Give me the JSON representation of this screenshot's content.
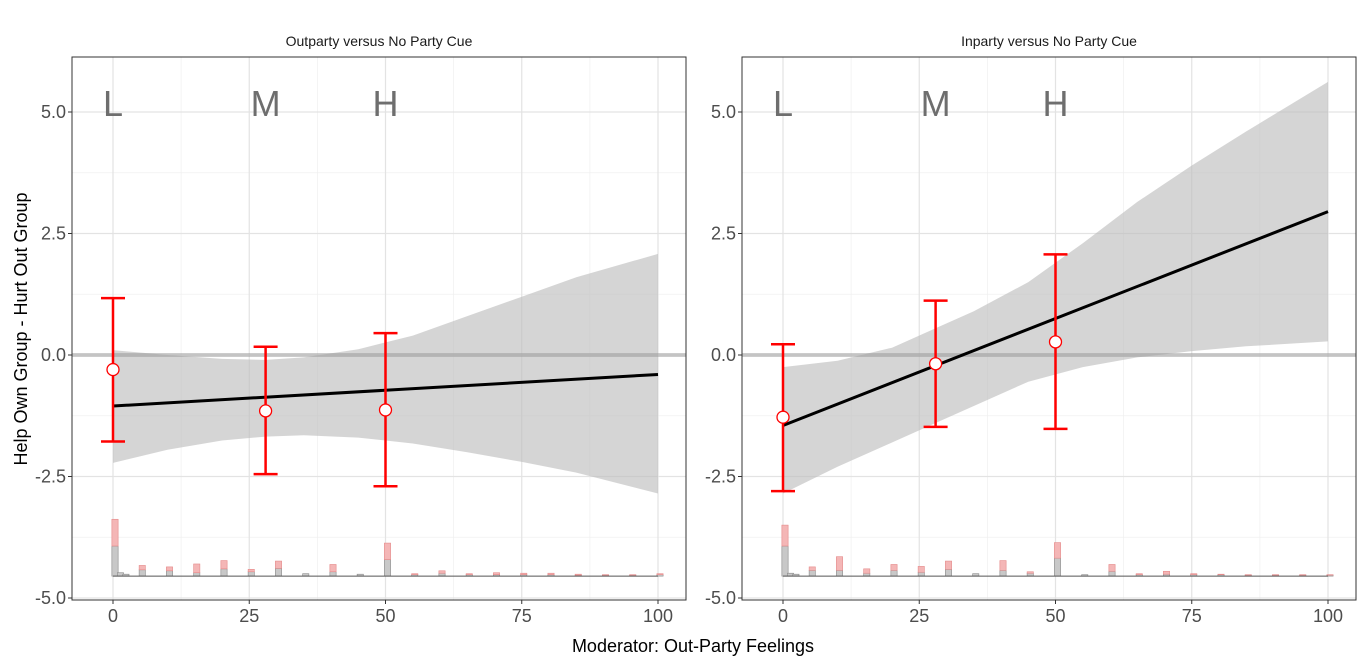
{
  "figure": {
    "ylabel": "Help Own Group - Hurt Out Group",
    "xlabel": "Moderator: Out-Party Feelings"
  },
  "chart_data": [
    {
      "type": "line",
      "title": "Outparty versus No Party Cue",
      "xlabel": "Moderator: Out-Party Feelings",
      "ylabel": "Help Own Group - Hurt Out Group",
      "xlim": [
        -7.5,
        105
      ],
      "ylim": [
        -5.1,
        6.1
      ],
      "x_ticks": [
        "0",
        "25",
        "50",
        "75",
        "100"
      ],
      "y_ticks": [
        "5.0",
        "2.5",
        "0.0",
        "-2.5",
        "-5.0"
      ],
      "grid": true,
      "reference_line_y": 0,
      "bin_labels": [
        {
          "label": "L",
          "x": 0
        },
        {
          "label": "M",
          "x": 28
        },
        {
          "label": "H",
          "x": 50
        }
      ],
      "fit_line": {
        "x": [
          0,
          100
        ],
        "y": [
          -1.05,
          -0.4
        ]
      },
      "confidence_band": {
        "x": [
          0,
          10,
          20,
          28,
          35,
          45,
          55,
          65,
          75,
          85,
          100
        ],
        "lower": [
          -2.22,
          -1.95,
          -1.76,
          -1.68,
          -1.65,
          -1.7,
          -1.82,
          -2.0,
          -2.2,
          -2.42,
          -2.85
        ],
        "upper": [
          0.1,
          0.0,
          -0.08,
          -0.1,
          -0.05,
          0.12,
          0.4,
          0.8,
          1.2,
          1.6,
          2.08
        ]
      },
      "bin_estimates": [
        {
          "x": 0,
          "y": -0.3,
          "lower": -1.78,
          "upper": 1.17
        },
        {
          "x": 28,
          "y": -1.15,
          "lower": -2.45,
          "upper": 0.17
        },
        {
          "x": 50,
          "y": -1.13,
          "lower": -2.7,
          "upper": 0.45
        }
      ],
      "histogram": {
        "baseline": -4.55,
        "bars": [
          {
            "x": 0,
            "gray": 0.62,
            "red": 0.55
          },
          {
            "x": 1,
            "gray": 0.07,
            "red": 0.0
          },
          {
            "x": 2,
            "gray": 0.04,
            "red": 0.0
          },
          {
            "x": 5,
            "gray": 0.13,
            "red": 0.09
          },
          {
            "x": 10,
            "gray": 0.11,
            "red": 0.08
          },
          {
            "x": 15,
            "gray": 0.07,
            "red": 0.18
          },
          {
            "x": 20,
            "gray": 0.15,
            "red": 0.17
          },
          {
            "x": 25,
            "gray": 0.09,
            "red": 0.05
          },
          {
            "x": 30,
            "gray": 0.16,
            "red": 0.15
          },
          {
            "x": 35,
            "gray": 0.05,
            "red": 0.0
          },
          {
            "x": 40,
            "gray": 0.09,
            "red": 0.15
          },
          {
            "x": 45,
            "gray": 0.04,
            "red": 0.0
          },
          {
            "x": 50,
            "gray": 0.34,
            "red": 0.34
          },
          {
            "x": 55,
            "gray": 0.03,
            "red": 0.02
          },
          {
            "x": 60,
            "gray": 0.06,
            "red": 0.05
          },
          {
            "x": 65,
            "gray": 0.03,
            "red": 0.02
          },
          {
            "x": 70,
            "gray": 0.03,
            "red": 0.04
          },
          {
            "x": 75,
            "gray": 0.03,
            "red": 0.03
          },
          {
            "x": 80,
            "gray": 0.03,
            "red": 0.03
          },
          {
            "x": 85,
            "gray": 0.02,
            "red": 0.02
          },
          {
            "x": 90,
            "gray": 0.02,
            "red": 0.01
          },
          {
            "x": 95,
            "gray": 0.02,
            "red": 0.01
          },
          {
            "x": 100,
            "gray": 0.03,
            "red": 0.02
          }
        ]
      }
    },
    {
      "type": "line",
      "title": "Inparty versus No Party Cue",
      "xlabel": "Moderator: Out-Party Feelings",
      "ylabel": "Help Own Group - Hurt Out Group",
      "xlim": [
        -7.5,
        105
      ],
      "ylim": [
        -5.1,
        6.1
      ],
      "x_ticks": [
        "0",
        "25",
        "50",
        "75",
        "100"
      ],
      "y_ticks": [
        "5.0",
        "2.5",
        "0.0",
        "-2.5",
        "-5.0"
      ],
      "grid": true,
      "reference_line_y": 0,
      "bin_labels": [
        {
          "label": "L",
          "x": 0
        },
        {
          "label": "M",
          "x": 28
        },
        {
          "label": "H",
          "x": 50
        }
      ],
      "fit_line": {
        "x": [
          0,
          100
        ],
        "y": [
          -1.45,
          2.95
        ]
      },
      "confidence_band": {
        "x": [
          0,
          10,
          20,
          28,
          35,
          45,
          55,
          65,
          75,
          85,
          100
        ],
        "lower": [
          -2.85,
          -2.3,
          -1.8,
          -1.4,
          -1.05,
          -0.55,
          -0.25,
          -0.05,
          0.08,
          0.18,
          0.28
        ],
        "upper": [
          -0.25,
          -0.12,
          0.15,
          0.55,
          0.9,
          1.5,
          2.3,
          3.15,
          3.9,
          4.6,
          5.62
        ]
      },
      "bin_estimates": [
        {
          "x": 0,
          "y": -1.28,
          "lower": -2.8,
          "upper": 0.22
        },
        {
          "x": 28,
          "y": -0.18,
          "lower": -1.48,
          "upper": 1.12
        },
        {
          "x": 50,
          "y": 0.27,
          "lower": -1.52,
          "upper": 2.07
        }
      ],
      "histogram": {
        "baseline": -4.55,
        "bars": [
          {
            "x": 0,
            "gray": 0.62,
            "red": 0.43
          },
          {
            "x": 1,
            "gray": 0.06,
            "red": 0.0
          },
          {
            "x": 2,
            "gray": 0.04,
            "red": 0.0
          },
          {
            "x": 5,
            "gray": 0.12,
            "red": 0.07
          },
          {
            "x": 10,
            "gray": 0.12,
            "red": 0.28
          },
          {
            "x": 15,
            "gray": 0.06,
            "red": 0.09
          },
          {
            "x": 20,
            "gray": 0.12,
            "red": 0.12
          },
          {
            "x": 25,
            "gray": 0.08,
            "red": 0.12
          },
          {
            "x": 30,
            "gray": 0.14,
            "red": 0.17
          },
          {
            "x": 35,
            "gray": 0.05,
            "red": 0.0
          },
          {
            "x": 40,
            "gray": 0.12,
            "red": 0.2
          },
          {
            "x": 45,
            "gray": 0.06,
            "red": 0.03
          },
          {
            "x": 50,
            "gray": 0.37,
            "red": 0.32
          },
          {
            "x": 55,
            "gray": 0.03,
            "red": 0.0
          },
          {
            "x": 60,
            "gray": 0.1,
            "red": 0.14
          },
          {
            "x": 65,
            "gray": 0.03,
            "red": 0.02
          },
          {
            "x": 70,
            "gray": 0.04,
            "red": 0.06
          },
          {
            "x": 75,
            "gray": 0.03,
            "red": 0.02
          },
          {
            "x": 80,
            "gray": 0.03,
            "red": 0.01
          },
          {
            "x": 85,
            "gray": 0.02,
            "red": 0.01
          },
          {
            "x": 90,
            "gray": 0.02,
            "red": 0.01
          },
          {
            "x": 95,
            "gray": 0.02,
            "red": 0.01
          },
          {
            "x": 100,
            "gray": 0.02,
            "red": 0.01
          }
        ]
      }
    }
  ]
}
